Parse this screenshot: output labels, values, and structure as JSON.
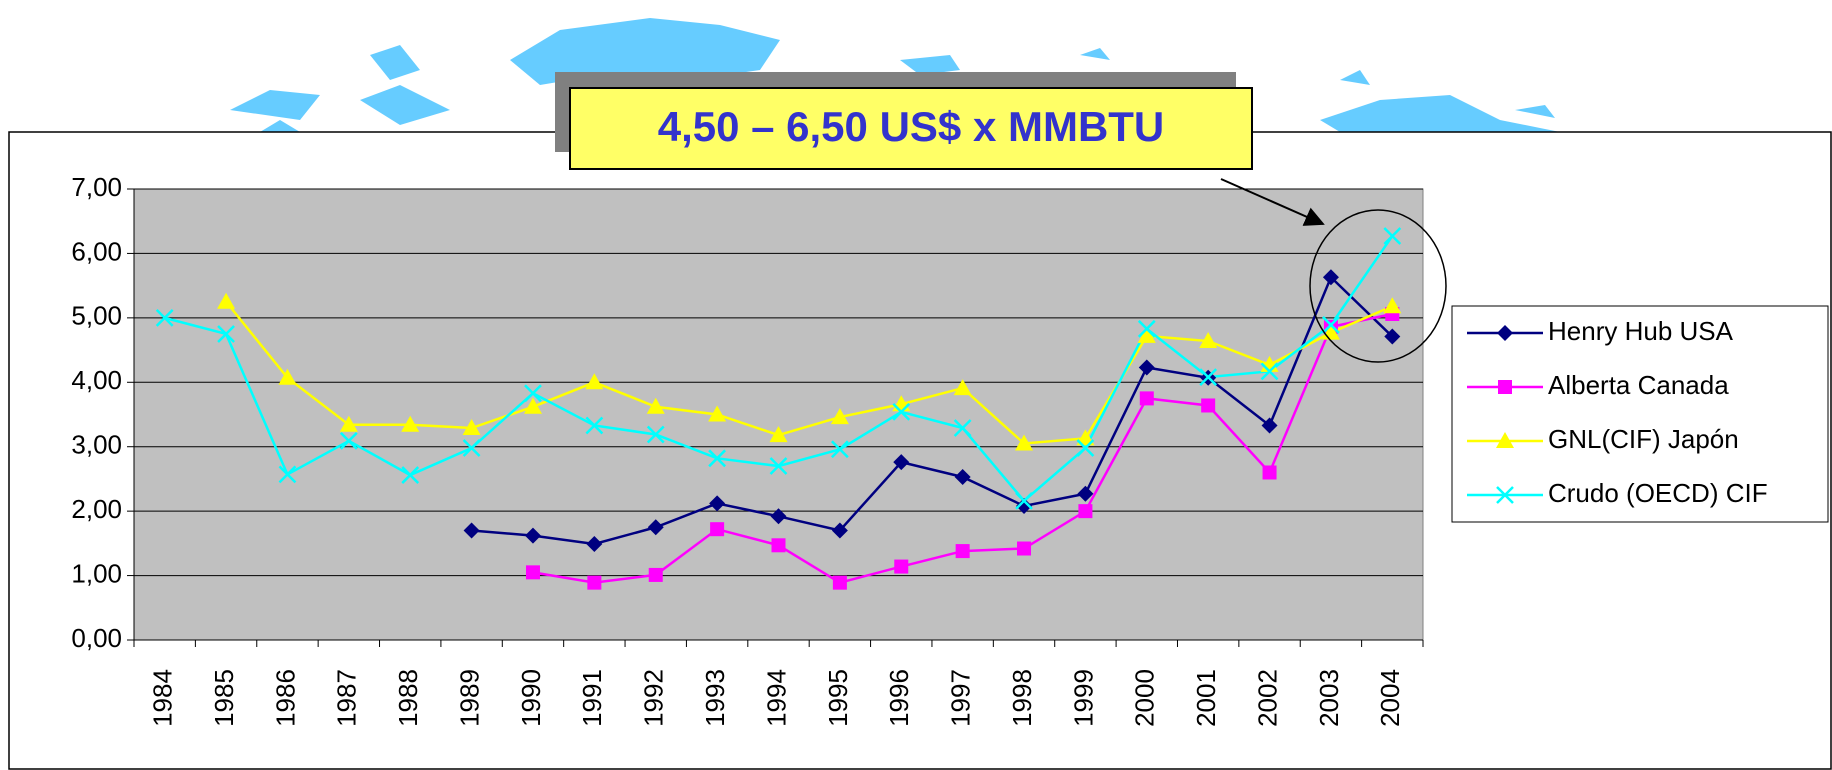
{
  "chart_data": {
    "type": "line",
    "annotation": "4,50 – 6,50 US$ x MMBTU",
    "categories": [
      "1984",
      "1985",
      "1986",
      "1987",
      "1988",
      "1989",
      "1990",
      "1991",
      "1992",
      "1993",
      "1994",
      "1995",
      "1996",
      "1997",
      "1998",
      "1999",
      "2000",
      "2001",
      "2002",
      "2003",
      "2004"
    ],
    "series": [
      {
        "name": "Henry Hub USA",
        "color": "#000080",
        "marker": "diamond",
        "values": [
          null,
          null,
          null,
          null,
          null,
          1.7,
          1.62,
          1.49,
          1.75,
          2.12,
          1.92,
          1.7,
          2.76,
          2.53,
          2.08,
          2.27,
          4.23,
          4.07,
          3.33,
          5.63,
          4.71
        ]
      },
      {
        "name": "Alberta Canada",
        "color": "#ff00ff",
        "marker": "square",
        "values": [
          null,
          null,
          null,
          null,
          null,
          null,
          1.05,
          0.89,
          1.01,
          1.72,
          1.47,
          0.89,
          1.14,
          1.38,
          1.42,
          2.0,
          3.75,
          3.64,
          2.6,
          4.86,
          5.06
        ]
      },
      {
        "name": "GNL(CIF) Japón",
        "color": "#ffff00",
        "marker": "triangle",
        "values": [
          null,
          5.25,
          4.07,
          3.34,
          3.34,
          3.29,
          3.62,
          4.0,
          3.62,
          3.5,
          3.18,
          3.46,
          3.66,
          3.91,
          3.05,
          3.13,
          4.72,
          4.64,
          4.27,
          4.77,
          5.18
        ]
      },
      {
        "name": "Crudo (OECD) CIF",
        "color": "#00ffff",
        "marker": "x",
        "values": [
          5.0,
          4.75,
          2.57,
          3.09,
          2.56,
          2.98,
          3.83,
          3.33,
          3.19,
          2.82,
          2.7,
          2.96,
          3.54,
          3.29,
          2.16,
          2.98,
          4.83,
          4.08,
          4.17,
          4.89,
          6.27
        ]
      }
    ],
    "ylim": [
      0,
      7
    ],
    "yticks": [
      {
        "value": 0,
        "label": "0,00"
      },
      {
        "value": 1,
        "label": "1,00"
      },
      {
        "value": 2,
        "label": "2,00"
      },
      {
        "value": 3,
        "label": "3,00"
      },
      {
        "value": 4,
        "label": "4,00"
      },
      {
        "value": 5,
        "label": "5,00"
      },
      {
        "value": 6,
        "label": "6,00"
      },
      {
        "value": 7,
        "label": "7,00"
      }
    ],
    "grid": true,
    "plot_background": "#c0c0c0",
    "legend": "right"
  }
}
